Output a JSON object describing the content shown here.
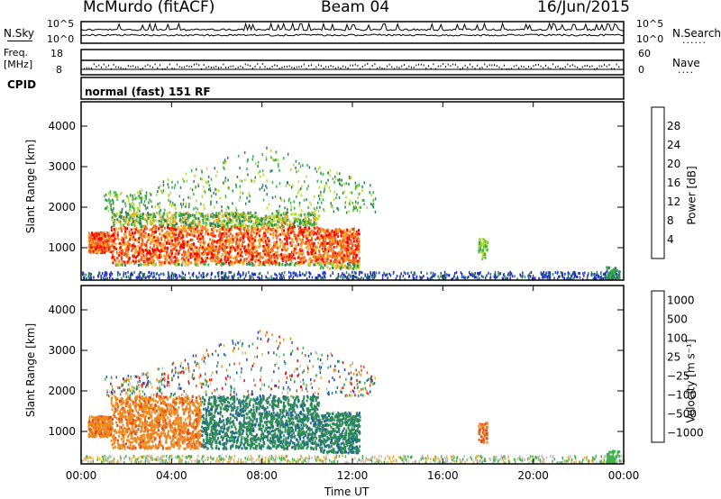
{
  "header": {
    "station": "McMurdo (fitACF)",
    "beam": "Beam 04",
    "date": "16/Jun/2015"
  },
  "noise_panel": {
    "left_label": "N.Sky",
    "right_label": "N.Search",
    "left_top_tick": "10^5",
    "left_bottom_tick": "10^0",
    "right_top_tick": "10^5",
    "right_bottom_tick": "10^0",
    "dots": "......"
  },
  "freq_panel": {
    "left_label_1": "Freq.",
    "left_label_2": "[MHz]",
    "right_label": "Nave",
    "left_top_tick": "18",
    "left_bottom_tick": "8",
    "right_top_tick": "60",
    "right_bottom_tick": "0",
    "dots": "...."
  },
  "cpid": {
    "label": "CPID",
    "mode": "normal (fast) 151 RF"
  },
  "colors": {
    "power_scale": [
      "#1a1aff",
      "#1f3f9f",
      "#2d7f5e",
      "#39b24a",
      "#b5dc2a",
      "#f5a623",
      "#f26522",
      "#ff0000"
    ],
    "velocity_scale": [
      "#1f3fbf",
      "#2060a0",
      "#2e8b57",
      "#3cb44b",
      "#bfbfbf",
      "#f0b030",
      "#ef8a1e",
      "#e64a19",
      "#ff0000"
    ]
  },
  "chart_data": [
    {
      "type": "heatmap",
      "name": "power",
      "ylabel": "Slant Range [km]",
      "xlabel": "",
      "x_ticks": [
        "00:00",
        "04:00",
        "08:00",
        "12:00",
        "16:00",
        "20:00",
        "00:00"
      ],
      "y_ticks": [
        "1000",
        "2000",
        "3000",
        "4000"
      ],
      "ylim": [
        200,
        4600
      ],
      "xlim": [
        0,
        24
      ],
      "colorbar": {
        "label": "Power [dB]",
        "ticks": [
          "4",
          "8",
          "12",
          "16",
          "20",
          "24",
          "28"
        ],
        "range": [
          0,
          32
        ]
      },
      "regions": [
        {
          "x": [
            1,
            12.3
          ],
          "y": [
            500,
            1900
          ],
          "level": "strong",
          "desc": ""
        },
        {
          "x": [
            0,
            24
          ],
          "y": [
            200,
            450
          ],
          "level": "weak"
        },
        {
          "x": [
            17.5,
            18
          ],
          "y": [
            700,
            1300
          ],
          "level": "medium"
        }
      ]
    },
    {
      "type": "heatmap",
      "name": "velocity",
      "ylabel": "Slant Range [km]",
      "xlabel": "Time UT",
      "x_ticks": [
        "00:00",
        "04:00",
        "08:00",
        "12:00",
        "16:00",
        "20:00",
        "00:00"
      ],
      "y_ticks": [
        "1000",
        "2000",
        "3000",
        "4000"
      ],
      "ylim": [
        200,
        4600
      ],
      "xlim": [
        0,
        24
      ],
      "colorbar": {
        "label": "Velocity [m s⁻¹]",
        "ticks": [
          "1000",
          "500",
          "100",
          "25",
          "−25",
          "−100",
          "−500",
          "−1000"
        ],
        "range": [
          -1500,
          1500
        ]
      },
      "regions": [
        {
          "x": [
            0.2,
            5.5
          ],
          "y": [
            600,
            2300
          ],
          "level": "negative"
        },
        {
          "x": [
            5,
            12.3
          ],
          "y": [
            500,
            1900
          ],
          "level": "positive"
        },
        {
          "x": [
            17.6,
            18
          ],
          "y": [
            700,
            1100
          ],
          "level": "negative"
        }
      ]
    }
  ]
}
